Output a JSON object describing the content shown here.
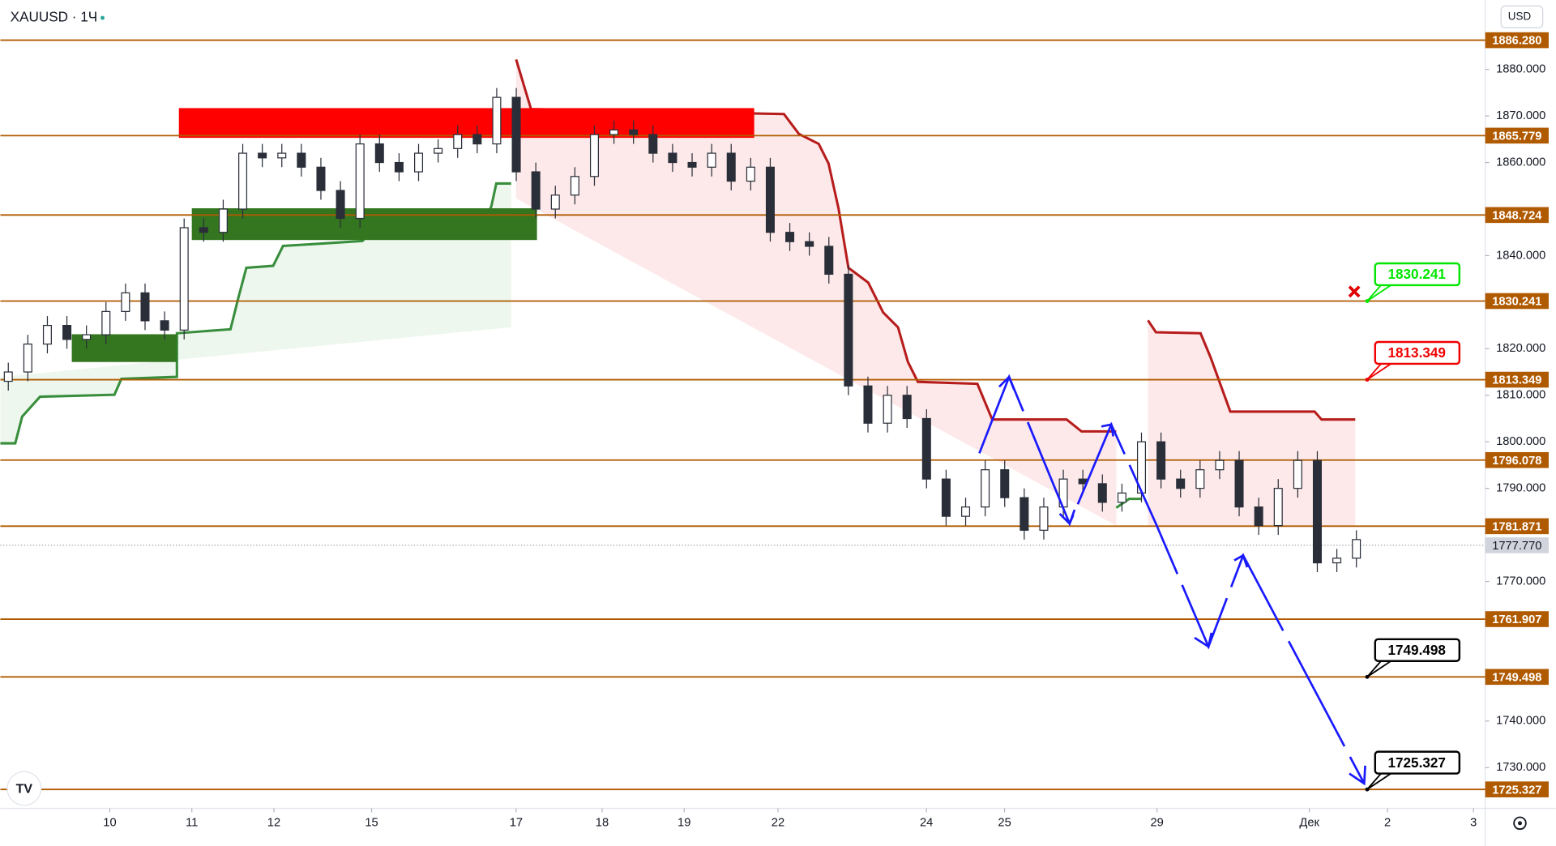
{
  "chart_data": {
    "type": "candlestick",
    "title": "XAUUSD · 1Ч",
    "currency": "USD",
    "xlim": [
      0,
      380
    ],
    "ylim": [
      1722,
      1890
    ],
    "x": [
      0,
      5,
      10,
      15,
      20,
      25,
      30,
      35,
      40,
      45,
      50,
      55,
      60,
      65,
      70,
      75,
      80,
      85,
      90,
      95,
      100,
      105,
      110,
      115,
      120,
      125,
      130,
      135,
      140,
      145,
      150,
      155,
      160,
      165,
      170,
      175,
      180,
      185,
      190,
      195,
      200,
      205,
      210,
      215,
      220,
      225,
      230,
      235,
      240,
      245,
      250,
      255,
      260,
      265,
      270,
      275,
      280,
      285,
      290,
      295,
      300,
      305,
      310,
      315,
      320,
      325,
      330,
      335,
      340,
      345
    ],
    "open": [
      1813,
      1815,
      1821,
      1825,
      1822,
      1823,
      1828,
      1832,
      1826,
      1824,
      1846,
      1845,
      1850,
      1862,
      1861,
      1862,
      1859,
      1854,
      1848,
      1864,
      1860,
      1858,
      1862,
      1863,
      1866,
      1864,
      1874,
      1858,
      1850,
      1853,
      1857,
      1866,
      1867,
      1866,
      1862,
      1860,
      1859,
      1862,
      1856,
      1859,
      1845,
      1843,
      1842,
      1836,
      1812,
      1804,
      1810,
      1805,
      1792,
      1784,
      1786,
      1794,
      1788,
      1781,
      1786,
      1792,
      1791,
      1787,
      1789,
      1800,
      1792,
      1790,
      1794,
      1796,
      1786,
      1782,
      1790,
      1796,
      1774,
      1775
    ],
    "high": [
      1817,
      1823,
      1827,
      1827,
      1825,
      1830,
      1834,
      1834,
      1828,
      1848,
      1848,
      1852,
      1864,
      1864,
      1864,
      1864,
      1861,
      1856,
      1866,
      1866,
      1862,
      1864,
      1865,
      1868,
      1868,
      1876,
      1876,
      1860,
      1855,
      1859,
      1868,
      1869,
      1869,
      1868,
      1864,
      1862,
      1864,
      1864,
      1861,
      1861,
      1847,
      1845,
      1844,
      1838,
      1814,
      1812,
      1812,
      1807,
      1794,
      1788,
      1796,
      1796,
      1790,
      1788,
      1794,
      1794,
      1793,
      1791,
      1802,
      1802,
      1794,
      1796,
      1798,
      1798,
      1788,
      1792,
      1798,
      1798,
      1777,
      1781
    ],
    "low": [
      1811,
      1813,
      1819,
      1820,
      1820,
      1821,
      1826,
      1824,
      1822,
      1822,
      1843,
      1843,
      1848,
      1859,
      1859,
      1857,
      1852,
      1846,
      1846,
      1858,
      1856,
      1856,
      1860,
      1861,
      1862,
      1862,
      1856,
      1848,
      1848,
      1851,
      1855,
      1864,
      1864,
      1860,
      1858,
      1857,
      1857,
      1854,
      1854,
      1843,
      1841,
      1840,
      1834,
      1810,
      1802,
      1802,
      1803,
      1790,
      1782,
      1782,
      1784,
      1786,
      1779,
      1779,
      1784,
      1789,
      1785,
      1785,
      1787,
      1790,
      1788,
      1788,
      1792,
      1784,
      1780,
      1780,
      1788,
      1772,
      1772,
      1773
    ],
    "close": [
      1815,
      1821,
      1825,
      1822,
      1823,
      1828,
      1832,
      1826,
      1824,
      1846,
      1845,
      1850,
      1862,
      1861,
      1862,
      1859,
      1854,
      1848,
      1864,
      1860,
      1858,
      1862,
      1863,
      1866,
      1864,
      1874,
      1858,
      1850,
      1853,
      1857,
      1866,
      1867,
      1866,
      1862,
      1860,
      1859,
      1862,
      1856,
      1859,
      1845,
      1843,
      1842,
      1836,
      1812,
      1804,
      1810,
      1805,
      1792,
      1784,
      1786,
      1794,
      1788,
      1781,
      1786,
      1792,
      1791,
      1787,
      1789,
      1800,
      1792,
      1790,
      1794,
      1796,
      1786,
      1782,
      1790,
      1796,
      1774,
      1775,
      1779
    ],
    "xticks": [
      {
        "value": 28,
        "label": "10"
      },
      {
        "value": 49,
        "label": "11"
      },
      {
        "value": 70,
        "label": "12"
      },
      {
        "value": 95,
        "label": "15"
      },
      {
        "value": 132,
        "label": "17"
      },
      {
        "value": 154,
        "label": "18"
      },
      {
        "value": 175,
        "label": "19"
      },
      {
        "value": 199,
        "label": "22"
      },
      {
        "value": 237,
        "label": "24"
      },
      {
        "value": 257,
        "label": "25"
      },
      {
        "value": 296,
        "label": "29"
      },
      {
        "value": 335,
        "label": "Дек"
      },
      {
        "value": 355,
        "label": "2"
      },
      {
        "value": 377,
        "label": "3"
      }
    ],
    "yticks": [
      {
        "value": 1880,
        "label": "1880.000"
      },
      {
        "value": 1870,
        "label": "1870.000"
      },
      {
        "value": 1860,
        "label": "1860.000"
      },
      {
        "value": 1840,
        "label": "1840.000"
      },
      {
        "value": 1820,
        "label": "1820.000"
      },
      {
        "value": 1810,
        "label": "1810.000"
      },
      {
        "value": 1800,
        "label": "1800.000"
      },
      {
        "value": 1790,
        "label": "1790.000"
      },
      {
        "value": 1770,
        "label": "1770.000"
      },
      {
        "value": 1740,
        "label": "1740.000"
      },
      {
        "value": 1730,
        "label": "1730.000"
      }
    ],
    "levels": [
      {
        "value": 1886.28,
        "label": "1886.280"
      },
      {
        "value": 1865.779,
        "label": "1865.779"
      },
      {
        "value": 1848.724,
        "label": "1848.724"
      },
      {
        "value": 1830.241,
        "label": "1830.241"
      },
      {
        "value": 1813.349,
        "label": "1813.349"
      },
      {
        "value": 1796.078,
        "label": "1796.078"
      },
      {
        "value": 1781.871,
        "label": "1781.871"
      },
      {
        "value": 1761.907,
        "label": "1761.907"
      },
      {
        "value": 1749.498,
        "label": "1749.498"
      },
      {
        "value": 1725.327,
        "label": "1725.327"
      }
    ],
    "last_price": {
      "value": 1777.77,
      "label": "1777.770"
    },
    "callouts": [
      {
        "value": 1830.241,
        "label": "1830.241",
        "color": "#00e600"
      },
      {
        "value": 1813.349,
        "label": "1813.349",
        "color": "#f00000"
      },
      {
        "value": 1749.498,
        "label": "1749.498",
        "color": "#000000"
      },
      {
        "value": 1725.327,
        "label": "1725.327",
        "color": "#000000"
      }
    ],
    "level_color": "#b05a00",
    "up_color": "#ffffff",
    "down_color": "#2a2e39"
  }
}
